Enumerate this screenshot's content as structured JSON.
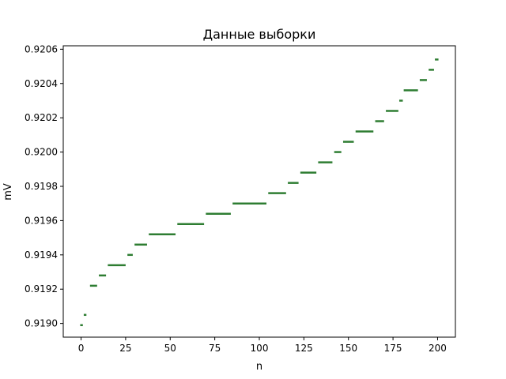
{
  "chart_data": {
    "type": "line",
    "title": "Данные выборки",
    "xlabel": "n",
    "ylabel": "mV",
    "xlim": [
      -10,
      210
    ],
    "ylim": [
      0.91892,
      0.92062
    ],
    "x_ticks": [
      0,
      25,
      50,
      75,
      100,
      125,
      150,
      175,
      200
    ],
    "x_tick_labels": [
      "0",
      "25",
      "50",
      "75",
      "100",
      "125",
      "150",
      "175",
      "200"
    ],
    "y_ticks": [
      0.919,
      0.9192,
      0.9194,
      0.9196,
      0.9198,
      0.92,
      0.9202,
      0.9204,
      0.9206
    ],
    "y_tick_labels": [
      "0.9190",
      "0.9192",
      "0.9194",
      "0.9196",
      "0.9198",
      "0.9200",
      "0.9202",
      "0.9204",
      "0.9206"
    ],
    "grid": false,
    "series": [
      {
        "color": "#2e7d32",
        "segments": [
          {
            "x": [
              -0.5,
              1
            ],
            "y": 0.91899
          },
          {
            "x": [
              1.5,
              3
            ],
            "y": 0.91905
          },
          {
            "x": [
              5,
              9
            ],
            "y": 0.91922
          },
          {
            "x": [
              10,
              14
            ],
            "y": 0.91928
          },
          {
            "x": [
              15,
              25
            ],
            "y": 0.91934
          },
          {
            "x": [
              26,
              29
            ],
            "y": 0.9194
          },
          {
            "x": [
              30,
              37
            ],
            "y": 0.91946
          },
          {
            "x": [
              38,
              53
            ],
            "y": 0.91952
          },
          {
            "x": [
              54,
              69
            ],
            "y": 0.91958
          },
          {
            "x": [
              70,
              84
            ],
            "y": 0.91964
          },
          {
            "x": [
              85,
              104
            ],
            "y": 0.9197
          },
          {
            "x": [
              105,
              115
            ],
            "y": 0.91976
          },
          {
            "x": [
              116,
              122
            ],
            "y": 0.91982
          },
          {
            "x": [
              123,
              132
            ],
            "y": 0.91988
          },
          {
            "x": [
              133,
              141
            ],
            "y": 0.91994
          },
          {
            "x": [
              142,
              146
            ],
            "y": 0.92
          },
          {
            "x": [
              147,
              153
            ],
            "y": 0.92006
          },
          {
            "x": [
              154,
              164
            ],
            "y": 0.92012
          },
          {
            "x": [
              165,
              170
            ],
            "y": 0.92018
          },
          {
            "x": [
              171,
              178
            ],
            "y": 0.92024
          },
          {
            "x": [
              178.5,
              180.5
            ],
            "y": 0.9203
          },
          {
            "x": [
              181,
              189
            ],
            "y": 0.92036
          },
          {
            "x": [
              190,
              194
            ],
            "y": 0.92042
          },
          {
            "x": [
              195,
              198
            ],
            "y": 0.92048
          },
          {
            "x": [
              198.5,
              200.5
            ],
            "y": 0.92054
          }
        ]
      }
    ]
  }
}
